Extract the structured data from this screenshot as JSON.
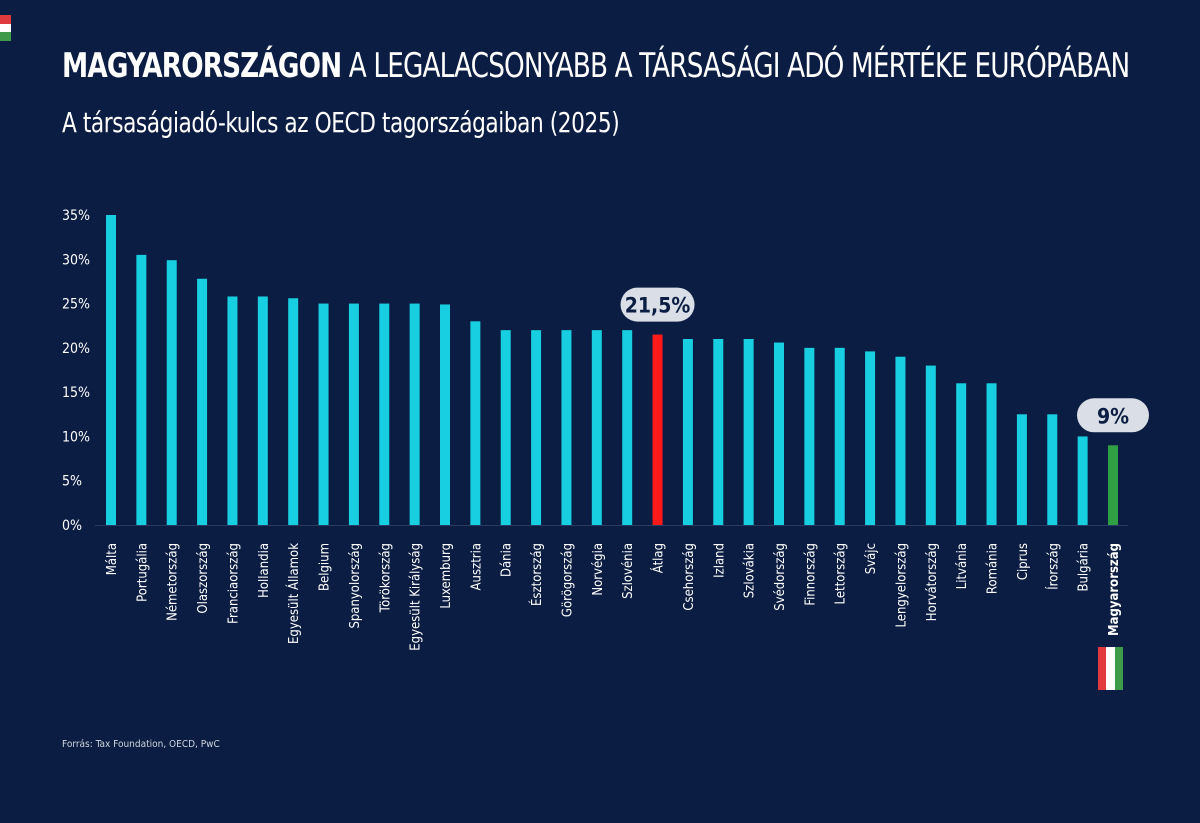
{
  "header": {
    "title_bold": "MAGYARORSZÁGON",
    "title_rest": " A LEGALACSONYABB A TÁRSASÁGI ADÓ MÉRTÉKE EURÓPÁBAN",
    "subtitle": "A társaságiadó-kulcs az OECD tagországaiban (2025)"
  },
  "source": "Forrás: Tax Foundation, OECD, PwC",
  "colors": {
    "background": "#0b1d42",
    "bar": "#17cfe0",
    "average": "#ff1a1a",
    "hungary": "#2ea043",
    "callout": "#d9dee7",
    "flag_red": "#e0393e",
    "flag_white": "#ffffff",
    "flag_green": "#3f9a4a"
  },
  "chart_data": {
    "type": "bar",
    "ylim": [
      0,
      35
    ],
    "yticks": [
      0,
      5,
      10,
      15,
      20,
      25,
      30,
      35
    ],
    "ytick_labels": [
      "0%",
      "5%",
      "10%",
      "15%",
      "20%",
      "25%",
      "30%",
      "35%"
    ],
    "grid": false,
    "categories": [
      "Málta",
      "Portugália",
      "Németország",
      "Olaszország",
      "Franciaország",
      "Hollandia",
      "Egyesült Államok",
      "Belgium",
      "Spanyolország",
      "Törökország",
      "Egyesült Királyság",
      "Luxemburg",
      "Ausztria",
      "Dánia",
      "Észtország",
      "Görögország",
      "Norvégia",
      "Szlovénia",
      "Átlag",
      "Csehország",
      "Izland",
      "Szlovákia",
      "Svédország",
      "Finnország",
      "Lettország",
      "Svájc",
      "Lengyelország",
      "Horvátország",
      "Litvánia",
      "Románia",
      "Ciprus",
      "Írország",
      "Bulgária",
      "Magyarország"
    ],
    "values": [
      35,
      30.5,
      29.9,
      27.8,
      25.8,
      25.8,
      25.6,
      25,
      25,
      25,
      25,
      24.9,
      23,
      22,
      22,
      22,
      22,
      22,
      21.5,
      21,
      21,
      21,
      20.6,
      20,
      20,
      19.6,
      19,
      18,
      16,
      16,
      12.5,
      12.5,
      10,
      9
    ],
    "highlights": {
      "Átlag": "average",
      "Magyarország": "hungary"
    },
    "annotations": [
      {
        "category": "Átlag",
        "text": "21,5%"
      },
      {
        "category": "Magyarország",
        "text": "9%"
      }
    ]
  }
}
